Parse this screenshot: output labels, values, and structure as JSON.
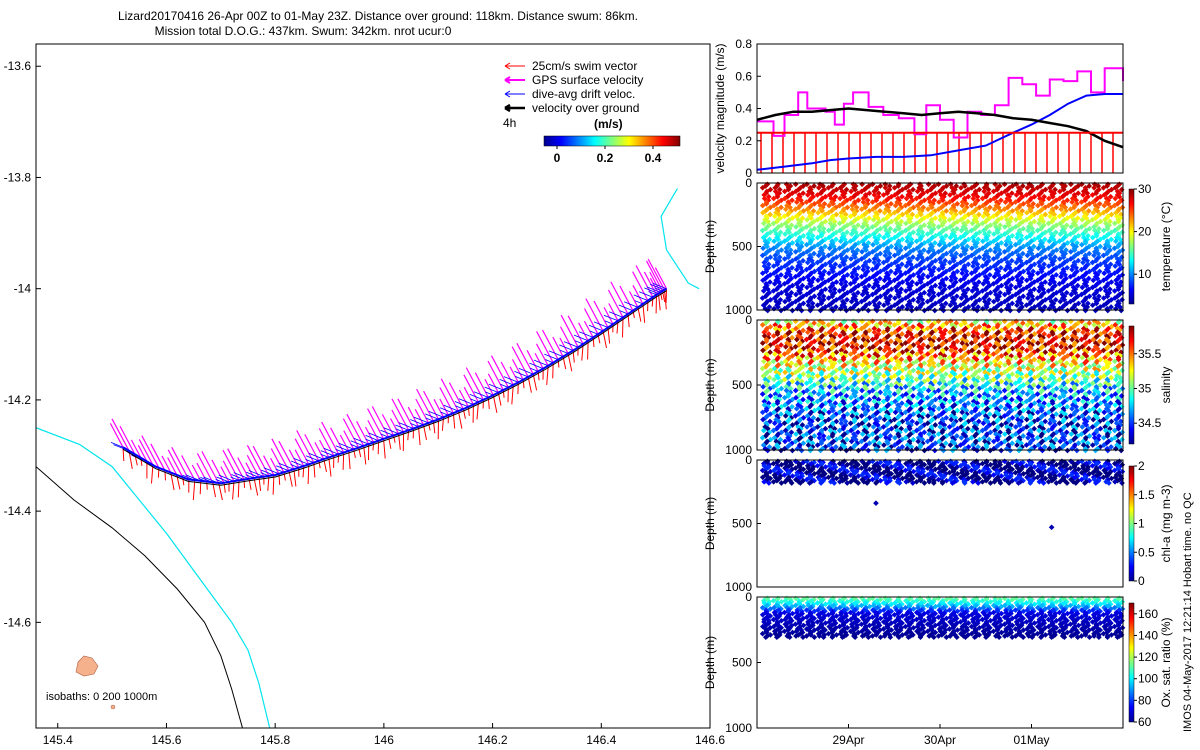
{
  "header": {
    "line1": "Lizard20170416 26-Apr 00Z to 01-May 23Z. Distance over ground: 118km. Distance swum: 86km.",
    "line2": "Mission total D.O.G.: 437km. Swum: 342km. nrot ucur:0"
  },
  "footer": {
    "imos": "IMOS 04-May-2017 12:21:14 Hobart time. no QC"
  },
  "colors": {
    "swim": "#ff0000",
    "gps": "#ff00ff",
    "drift": "#0000ff",
    "dog": "#000000",
    "coast": "#00e5ee",
    "isobath": "#000000",
    "island": "#f5b08c"
  },
  "chart_data": [
    {
      "type": "line",
      "id": "map",
      "title": "",
      "xlim": [
        145.36,
        146.6
      ],
      "ylim": [
        -14.79,
        -13.56
      ],
      "x_ticks": [
        145.4,
        145.6,
        145.8,
        146,
        146.2,
        146.4,
        146.6
      ],
      "x_tick_labels": [
        "145.4",
        "145.6",
        "145.8",
        "146",
        "146.2",
        "146.4",
        "146.6"
      ],
      "y_ticks": [
        -13.6,
        -13.8,
        -14,
        -14.2,
        -14.4,
        -14.6
      ],
      "y_tick_labels": [
        "-13.6",
        "-13.8",
        "-14",
        "-14.2",
        "-14.4",
        "-14.6"
      ],
      "legend": {
        "placement": "top-right",
        "entries": [
          "25cm/s swim vector",
          "GPS surface velocity",
          "dive-avg drift veloc.",
          "velocity over ground"
        ],
        "interval_label": "4h"
      },
      "colorbar": {
        "label": "(m/s)",
        "ticks": [
          "0",
          "0.2",
          "0.4"
        ],
        "range": [
          0,
          0.5
        ]
      },
      "isobaths_label": "isobaths: 0   200  1000m",
      "track": {
        "lon": [
          145.52,
          145.58,
          145.64,
          145.7,
          145.75,
          145.8,
          145.85,
          145.9,
          145.95,
          146.0,
          146.05,
          146.1,
          146.15,
          146.2,
          146.25,
          146.3,
          146.35,
          146.4,
          146.45,
          146.5,
          146.52
        ],
        "lat": [
          -14.285,
          -14.32,
          -14.343,
          -14.35,
          -14.342,
          -14.335,
          -14.32,
          -14.303,
          -14.287,
          -14.27,
          -14.253,
          -14.235,
          -14.215,
          -14.192,
          -14.167,
          -14.14,
          -14.11,
          -14.078,
          -14.045,
          -14.012,
          -14.0
        ]
      },
      "coastline": {
        "lon": [
          145.36,
          145.44,
          145.5,
          145.55,
          145.6,
          145.66,
          145.72,
          145.75,
          145.77,
          145.79
        ],
        "lat": [
          -14.25,
          -14.28,
          -14.32,
          -14.38,
          -14.44,
          -14.52,
          -14.6,
          -14.65,
          -14.71,
          -14.79
        ]
      },
      "reef_edge": {
        "lon": [
          146.54,
          146.51,
          146.52,
          146.56,
          146.58
        ],
        "lat": [
          -13.82,
          -13.87,
          -13.93,
          -13.99,
          -14.0
        ]
      },
      "isobath_line": {
        "lon": [
          145.36,
          145.43,
          145.5,
          145.56,
          145.62,
          145.67,
          145.7,
          145.72,
          145.74
        ],
        "lat": [
          -14.32,
          -14.38,
          -14.43,
          -14.48,
          -14.54,
          -14.6,
          -14.66,
          -14.72,
          -14.79
        ]
      }
    },
    {
      "type": "line",
      "id": "velocity",
      "ylabel": "velocity magnitude (m/s)",
      "ylim": [
        0,
        0.8
      ],
      "y_ticks": [
        0,
        0.2,
        0.4,
        0.6,
        0.8
      ],
      "y_tick_labels": [
        "0",
        "0.2",
        "0.4",
        "0.6",
        "0.8"
      ],
      "xlim": [
        28.0,
        32.0
      ],
      "series": [
        {
          "name": "GPS surface velocity",
          "color": "#ff00ff",
          "step": true,
          "x": [
            28.0,
            28.18,
            28.3,
            28.45,
            28.55,
            28.75,
            28.85,
            28.95,
            29.05,
            29.22,
            29.38,
            29.55,
            29.72,
            29.85,
            30.0,
            30.15,
            30.3,
            30.45,
            30.6,
            30.75,
            30.9,
            31.05,
            31.2,
            31.35,
            31.5,
            31.65,
            31.8,
            32.0
          ],
          "y": [
            0.32,
            0.23,
            0.36,
            0.5,
            0.4,
            0.38,
            0.3,
            0.43,
            0.5,
            0.41,
            0.36,
            0.34,
            0.24,
            0.42,
            0.33,
            0.22,
            0.38,
            0.36,
            0.42,
            0.59,
            0.55,
            0.48,
            0.58,
            0.57,
            0.63,
            0.5,
            0.65,
            0.57
          ]
        },
        {
          "name": "dive-avg drift veloc.",
          "color": "#0000ff",
          "step": false,
          "x": [
            28.0,
            28.3,
            28.6,
            28.8,
            29.0,
            29.3,
            29.6,
            29.9,
            30.2,
            30.5,
            30.8,
            31.0,
            31.2,
            31.4,
            31.6,
            31.8,
            32.0
          ],
          "y": [
            0.02,
            0.04,
            0.06,
            0.08,
            0.09,
            0.1,
            0.1,
            0.11,
            0.14,
            0.17,
            0.25,
            0.3,
            0.36,
            0.43,
            0.48,
            0.49,
            0.49
          ]
        },
        {
          "name": "velocity over ground",
          "color": "#000000",
          "step": false,
          "x": [
            28.0,
            28.2,
            28.4,
            28.6,
            28.8,
            29.0,
            29.2,
            29.4,
            29.6,
            29.8,
            30.0,
            30.2,
            30.4,
            30.6,
            30.8,
            31.0,
            31.2,
            31.4,
            31.6,
            31.8,
            32.0
          ],
          "y": [
            0.33,
            0.36,
            0.38,
            0.38,
            0.39,
            0.4,
            0.39,
            0.38,
            0.37,
            0.36,
            0.37,
            0.38,
            0.37,
            0.36,
            0.34,
            0.33,
            0.31,
            0.29,
            0.26,
            0.2,
            0.16
          ]
        },
        {
          "name": "25cm/s swim vector",
          "color": "#ff0000",
          "step": true,
          "x": [
            28.0,
            32.0
          ],
          "y": [
            0.25,
            0.25
          ]
        }
      ]
    },
    {
      "type": "scatter",
      "id": "temperature",
      "ylabel": "Depth (m)",
      "ylim": [
        1000,
        0
      ],
      "y_ticks": [
        0,
        500,
        1000
      ],
      "y_tick_labels": [
        "0",
        "500",
        "1000"
      ],
      "colorbar": {
        "label": "temperature (°C)",
        "range": [
          3,
          30
        ],
        "ticks": [
          10,
          20,
          30
        ],
        "tick_labels": [
          "10",
          "20",
          "30"
        ]
      },
      "profiles": 33,
      "max_depth": 1000,
      "value_profile": {
        "depth": [
          0,
          100,
          200,
          300,
          400,
          500,
          600,
          800,
          1000
        ],
        "value": [
          29,
          27,
          23,
          18,
          14,
          10,
          8,
          5.5,
          4.5
        ]
      }
    },
    {
      "type": "scatter",
      "id": "salinity",
      "ylabel": "Depth (m)",
      "ylim": [
        1000,
        0
      ],
      "y_ticks": [
        0,
        500,
        1000
      ],
      "y_tick_labels": [
        "0",
        "500",
        "1000"
      ],
      "colorbar": {
        "label": "salinity",
        "range": [
          34.2,
          35.9
        ],
        "ticks": [
          34.5,
          35,
          35.5
        ],
        "tick_labels": [
          "34.5",
          "35",
          "35.5"
        ]
      },
      "profiles": 33,
      "max_depth": 1000,
      "value_profile": {
        "depth": [
          0,
          100,
          200,
          300,
          400,
          500,
          700,
          1000
        ],
        "value": [
          35.2,
          35.75,
          35.7,
          35.4,
          35.1,
          34.8,
          34.5,
          34.45
        ]
      }
    },
    {
      "type": "scatter",
      "id": "chla",
      "ylabel": "Depth (m)",
      "ylim": [
        1000,
        0
      ],
      "y_ticks": [
        0,
        500,
        1000
      ],
      "y_tick_labels": [
        "0",
        "500",
        "1000"
      ],
      "colorbar": {
        "label": "chl-a (mg m-3)",
        "range": [
          0,
          2
        ],
        "ticks": [
          0,
          0.5,
          1,
          1.5,
          2
        ],
        "tick_labels": [
          "0",
          "0.5",
          "1",
          "1.5",
          "2"
        ]
      },
      "profiles": 33,
      "max_depth": 180,
      "outliers": [
        {
          "x": 29.3,
          "depth": 340
        },
        {
          "x": 31.22,
          "depth": 530
        }
      ],
      "value_profile": {
        "depth": [
          0,
          200
        ],
        "value": [
          0.05,
          0.05
        ]
      }
    },
    {
      "type": "scatter",
      "id": "oxygen",
      "ylabel": "Depth (m)",
      "ylim": [
        1000,
        0
      ],
      "y_ticks": [
        0,
        500,
        1000
      ],
      "y_tick_labels": [
        "0",
        "500",
        "1000"
      ],
      "x_tick_labels": [
        "29Apr",
        "30Apr",
        "01May"
      ],
      "x_ticks": [
        29.0,
        30.0,
        31.0
      ],
      "xlim": [
        28.0,
        32.0
      ],
      "colorbar": {
        "label": "Ox. sat. ratio (%)",
        "range": [
          60,
          170
        ],
        "ticks": [
          60,
          80,
          100,
          120,
          140,
          160
        ],
        "tick_labels": [
          "60",
          "80",
          "100",
          "120",
          "140",
          "160"
        ]
      },
      "profiles": 33,
      "max_depth": 300,
      "value_profile": {
        "depth": [
          0,
          60,
          120,
          300
        ],
        "value": [
          115,
          95,
          70,
          62
        ]
      }
    }
  ]
}
